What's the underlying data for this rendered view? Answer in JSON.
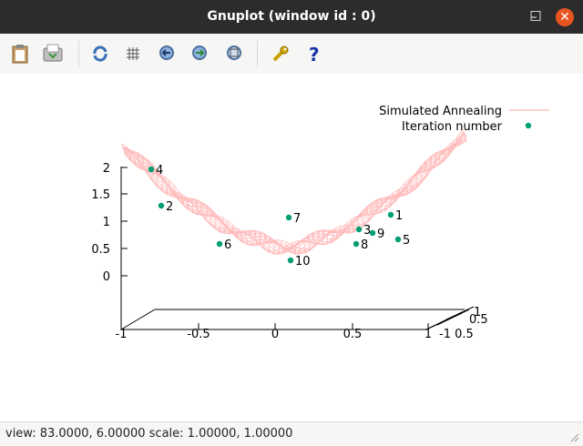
{
  "window": {
    "title": "Gnuplot (window id : 0)"
  },
  "controls": {
    "minimize": "–",
    "maximize": "□",
    "close": "✕"
  },
  "toolbar": [
    {
      "name": "copy-clipboard-icon"
    },
    {
      "name": "print-icon"
    },
    {
      "name": "replot-icon"
    },
    {
      "name": "grid-icon"
    },
    {
      "name": "zoom-previous-icon"
    },
    {
      "name": "zoom-next-icon"
    },
    {
      "name": "autoscale-icon"
    },
    {
      "name": "settings-wrench-icon"
    },
    {
      "name": "help-icon"
    }
  ],
  "status": {
    "text": "view: 83.0000,  6.00000  scale: 1.00000,  1.00000"
  },
  "chart_data": {
    "type": "scatter",
    "view": [
      83,
      6
    ],
    "legend": [
      {
        "label": "Simulated Annealing",
        "style": "line",
        "color": "#ffb6b6"
      },
      {
        "label": "Iteration number",
        "style": "point",
        "color": "#009e73"
      }
    ],
    "z_ticks": [
      "2",
      "1.5",
      "1",
      "0.5",
      "0"
    ],
    "x_ticks": [
      "-1",
      "-0.5",
      "0",
      "0.5",
      "1"
    ],
    "y_ticks": [
      "1",
      "0.5",
      "-1 0.5"
    ],
    "series": [
      {
        "name": "Iteration number",
        "points": [
          {
            "label": "4"
          },
          {
            "label": "2"
          },
          {
            "label": "7"
          },
          {
            "label": "1"
          },
          {
            "label": "3"
          },
          {
            "label": "9"
          },
          {
            "label": "8"
          },
          {
            "label": "5"
          },
          {
            "label": "6"
          },
          {
            "label": "10"
          }
        ]
      }
    ]
  }
}
